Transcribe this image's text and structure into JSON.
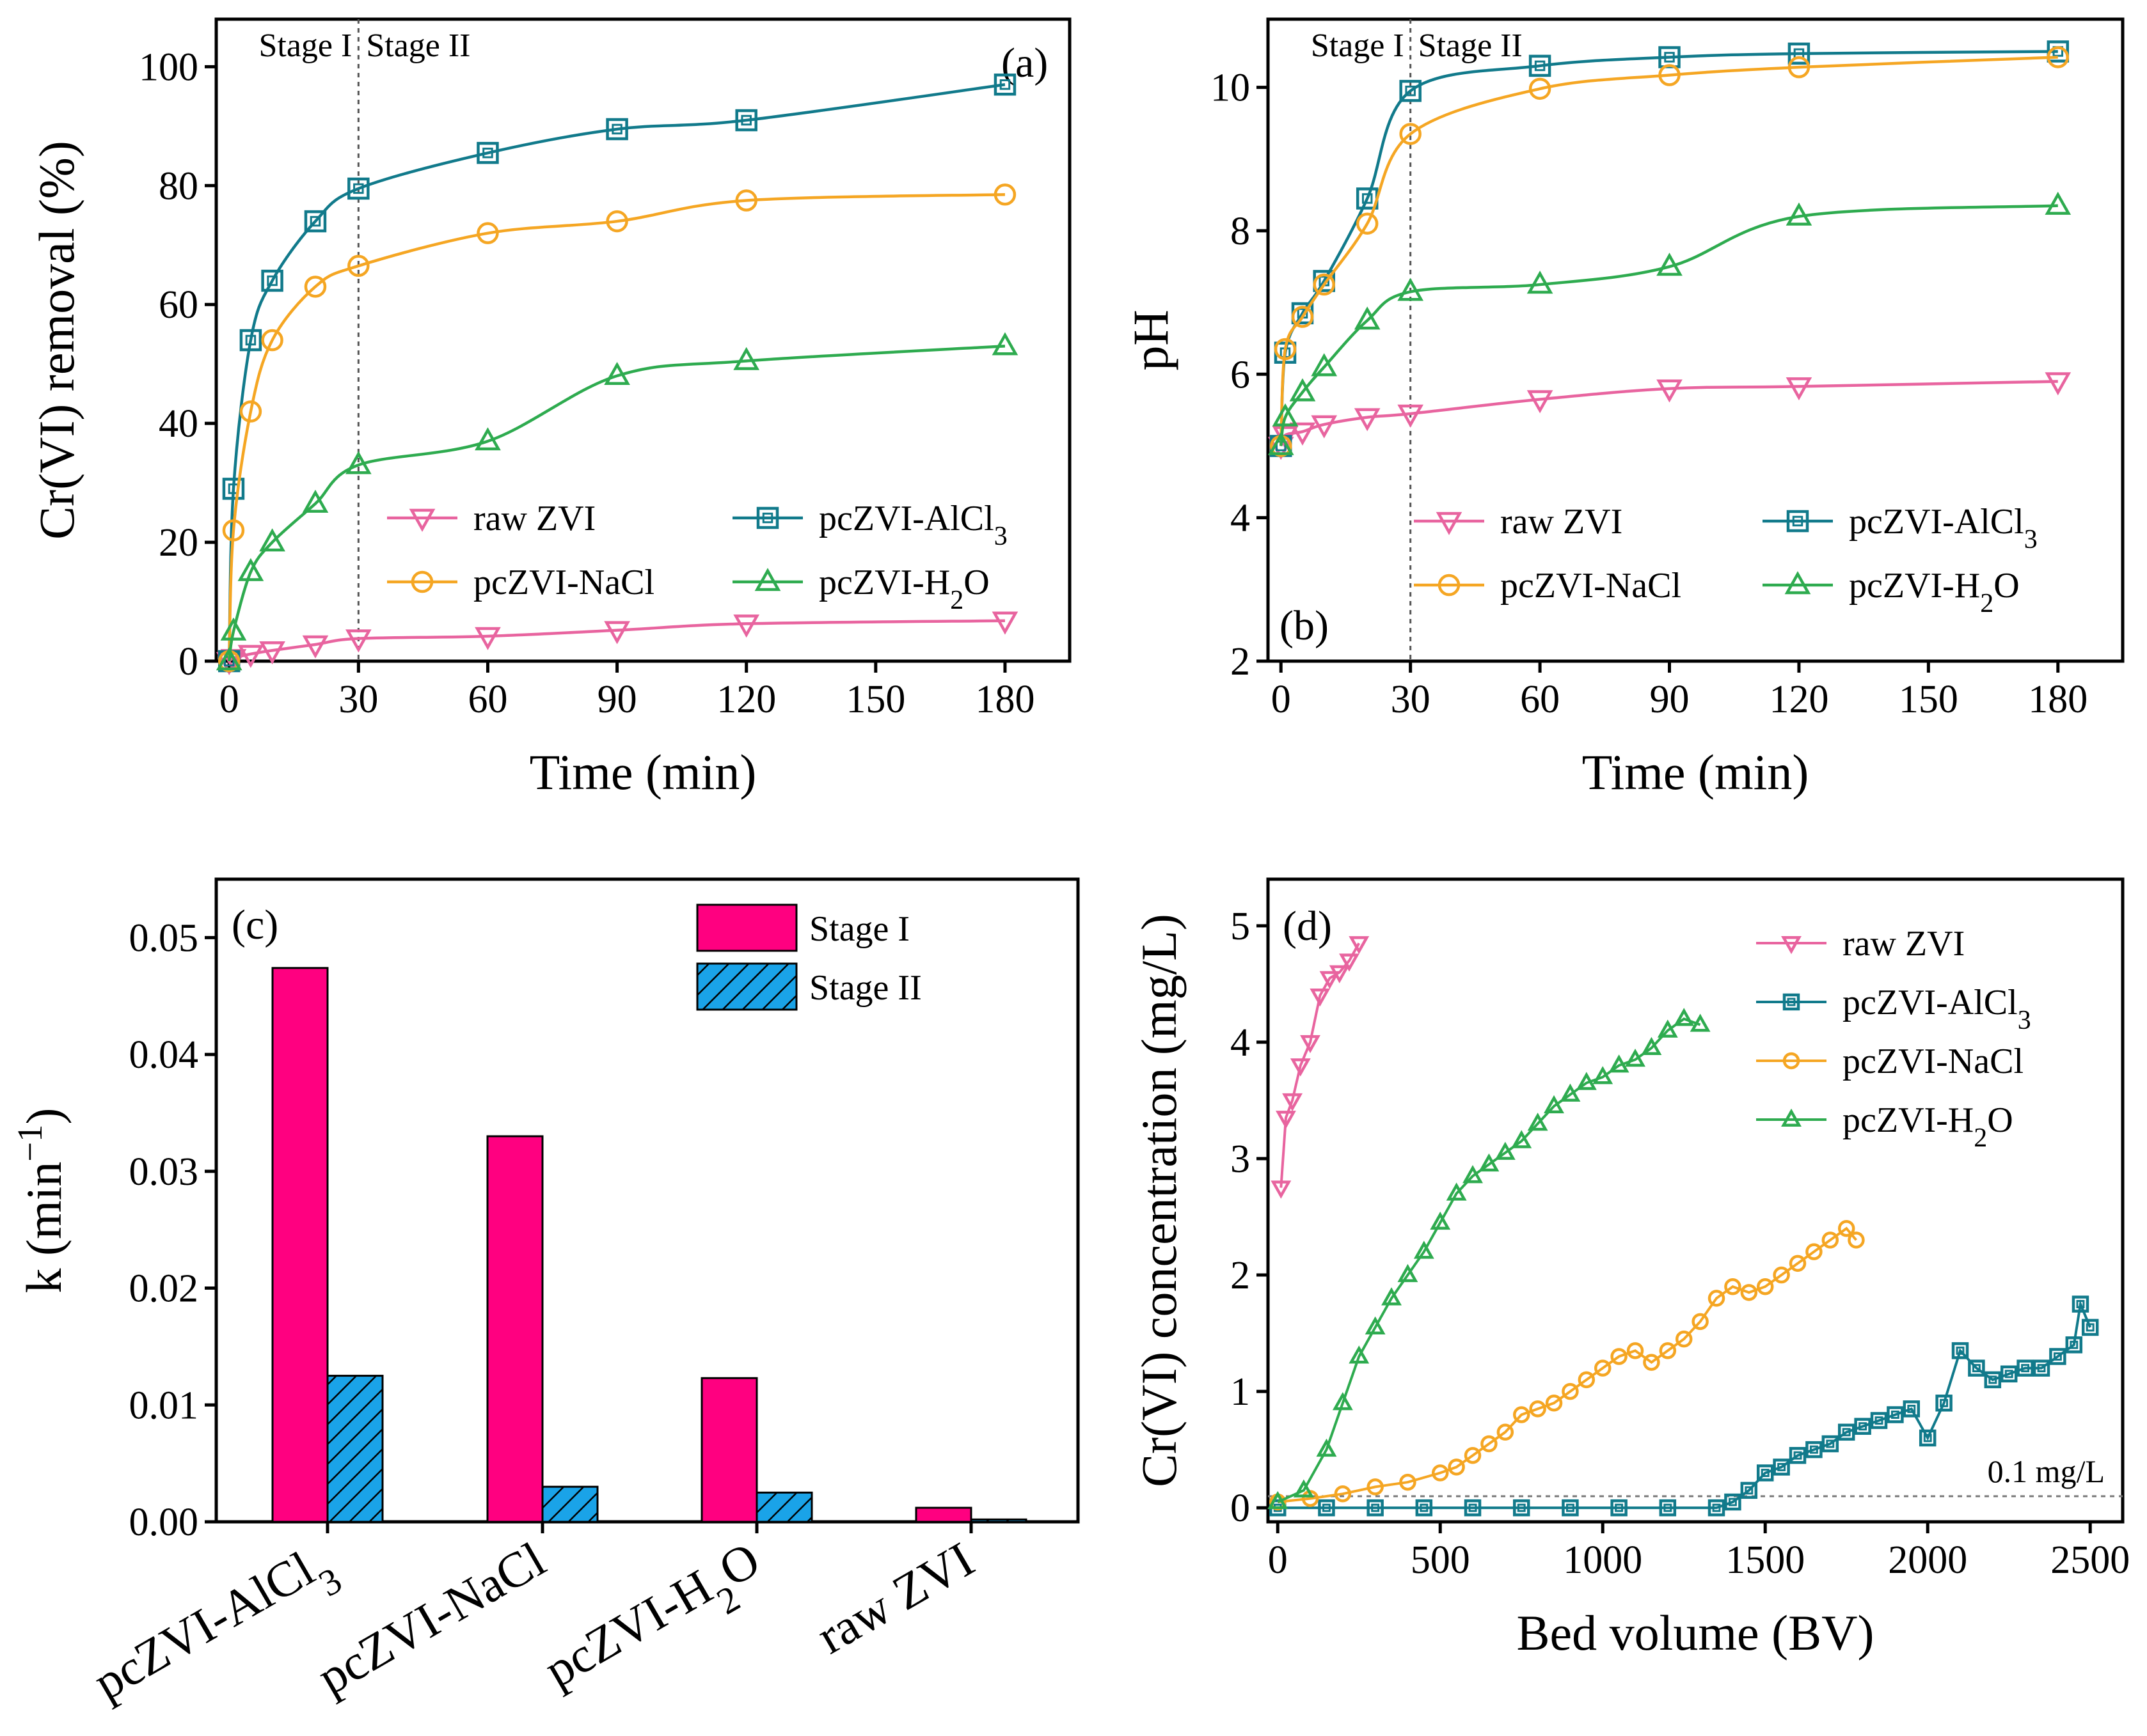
{
  "figure": {
    "colors": {
      "raw": "#e8649f",
      "alcl3": "#117a8b",
      "nacl": "#f5a623",
      "h2o": "#2eab4f",
      "stage1": "#ff0080",
      "stage2": "#1aa3e8"
    }
  },
  "chart_data": [
    {
      "id": "a",
      "type": "line",
      "panel_label": "(a)",
      "xlabel": "Time (min)",
      "ylabel": "Cr(VI) removal (%)",
      "xlim": [
        -3,
        195
      ],
      "ylim": [
        0,
        108
      ],
      "xticks": [
        0,
        30,
        60,
        90,
        120,
        150,
        180
      ],
      "yticks": [
        0,
        20,
        40,
        60,
        80,
        100
      ],
      "stage_divider": 30,
      "stage_labels": [
        "Stage I",
        "Stage II"
      ],
      "x": [
        0,
        1,
        5,
        10,
        20,
        30,
        60,
        90,
        120,
        180
      ],
      "series": [
        {
          "name": "raw ZVI",
          "label": "raw ZVI",
          "marker": "triangle-down",
          "color_key": "raw",
          "values": [
            0,
            0.5,
            1.2,
            1.8,
            2.8,
            3.8,
            4.2,
            5.2,
            6.3,
            6.8
          ]
        },
        {
          "name": "pcZVI-AlCl3",
          "label": "pcZVI-AlCl",
          "sub": "3",
          "marker": "square",
          "color_key": "alcl3",
          "values": [
            0,
            29,
            54,
            64,
            74,
            79.5,
            85.5,
            89.5,
            91,
            97
          ]
        },
        {
          "name": "pcZVI-NaCl",
          "label": "pcZVI-NaCl",
          "marker": "circle",
          "color_key": "nacl",
          "values": [
            0,
            22,
            42,
            54,
            63,
            66.5,
            72,
            74,
            77.5,
            78.5
          ]
        },
        {
          "name": "pcZVI-H2O",
          "label": "pcZVI-H",
          "sub": "2",
          "tail": "O",
          "marker": "triangle-up",
          "color_key": "h2o",
          "values": [
            0,
            5,
            15,
            20,
            26.5,
            33,
            37,
            48,
            50.5,
            53
          ]
        }
      ],
      "legend": "center-right, two columns"
    },
    {
      "id": "b",
      "type": "line",
      "panel_label": "(b)",
      "xlabel": "Time (min)",
      "ylabel": "pH",
      "xlim": [
        -3,
        195
      ],
      "ylim": [
        2,
        10.95
      ],
      "xticks": [
        0,
        30,
        60,
        90,
        120,
        150,
        180
      ],
      "yticks": [
        2,
        4,
        6,
        8,
        10
      ],
      "stage_divider": 30,
      "stage_labels": [
        "Stage I",
        "Stage II"
      ],
      "x": [
        0,
        1,
        5,
        10,
        20,
        30,
        60,
        90,
        120,
        180
      ],
      "series": [
        {
          "name": "raw ZVI",
          "label": "raw ZVI",
          "marker": "triangle-down",
          "color_key": "raw",
          "values": [
            5.0,
            5.15,
            5.2,
            5.3,
            5.4,
            5.45,
            5.65,
            5.8,
            5.83,
            5.9
          ]
        },
        {
          "name": "pcZVI-AlCl3",
          "label": "pcZVI-AlCl",
          "sub": "3",
          "marker": "square",
          "color_key": "alcl3",
          "values": [
            5.0,
            6.3,
            6.85,
            7.3,
            8.45,
            9.95,
            10.3,
            10.42,
            10.47,
            10.5
          ]
        },
        {
          "name": "pcZVI-NaCl",
          "label": "pcZVI-NaCl",
          "marker": "circle",
          "color_key": "nacl",
          "values": [
            5.0,
            6.35,
            6.8,
            7.25,
            8.1,
            9.35,
            9.98,
            10.17,
            10.28,
            10.42
          ]
        },
        {
          "name": "pcZVI-H2O",
          "label": "pcZVI-H",
          "sub": "2",
          "tail": "O",
          "marker": "triangle-up",
          "color_key": "h2o",
          "values": [
            5.0,
            5.4,
            5.75,
            6.1,
            6.75,
            7.15,
            7.25,
            7.5,
            8.2,
            8.35
          ]
        }
      ],
      "legend": "bottom-right, two columns"
    },
    {
      "id": "c",
      "type": "bar",
      "panel_label": "(c)",
      "xlabel": "",
      "ylabel": "k (min",
      "ylabel_sup": "−1",
      "ylabel_tail": ")",
      "ylim": [
        0,
        0.055
      ],
      "yticks": [
        "0.00",
        "0.01",
        "0.02",
        "0.03",
        "0.04",
        "0.05"
      ],
      "categories": [
        {
          "label": "pcZVI-AlCl",
          "sub": "3"
        },
        {
          "label": "pcZVI-NaCl"
        },
        {
          "label": "pcZVI-H",
          "sub": "2",
          "tail": "O"
        },
        {
          "label": "raw ZVI"
        }
      ],
      "series": [
        {
          "name": "Stage I",
          "label": "Stage I",
          "color_key": "stage1",
          "values": [
            0.0474,
            0.033,
            0.0123,
            0.0012
          ]
        },
        {
          "name": "Stage II",
          "label": "Stage II",
          "color_key": "stage2",
          "hatch": true,
          "values": [
            0.0125,
            0.003,
            0.0025,
            0.0002
          ]
        }
      ],
      "legend": "top-right"
    },
    {
      "id": "d",
      "type": "scatter",
      "panel_label": "(d)",
      "xlabel": "Bed volume (BV)",
      "ylabel": "Cr(VI) concentration (mg/L)",
      "xlim": [
        -30,
        2600
      ],
      "ylim": [
        -0.12,
        5.4
      ],
      "xticks": [
        0,
        500,
        1000,
        1500,
        2000,
        2500
      ],
      "yticks": [
        0,
        1,
        2,
        3,
        4,
        5
      ],
      "reference_line": {
        "y": 0.1,
        "label": "0.1 mg/L"
      },
      "series": [
        {
          "name": "raw ZVI",
          "label": "raw ZVI",
          "marker": "triangle-down",
          "color_key": "raw",
          "x": [
            10,
            25,
            45,
            70,
            100,
            130,
            160,
            190,
            220,
            250
          ],
          "y": [
            2.75,
            3.35,
            3.5,
            3.8,
            4.0,
            4.4,
            4.55,
            4.6,
            4.7,
            4.85
          ]
        },
        {
          "name": "pcZVI-AlCl3",
          "label": "pcZVI-AlCl",
          "sub": "3",
          "marker": "square",
          "color_key": "alcl3",
          "x": [
            0,
            150,
            300,
            450,
            600,
            750,
            900,
            1050,
            1200,
            1350,
            1400,
            1450,
            1500,
            1550,
            1600,
            1650,
            1700,
            1750,
            1800,
            1850,
            1900,
            1950,
            2000,
            2050,
            2100,
            2150,
            2200,
            2250,
            2300,
            2350,
            2400,
            2450,
            2470,
            2500
          ],
          "y": [
            0,
            0,
            0,
            0,
            0,
            0,
            0,
            0,
            0,
            0,
            0.05,
            0.15,
            0.3,
            0.35,
            0.45,
            0.5,
            0.55,
            0.65,
            0.7,
            0.75,
            0.8,
            0.85,
            0.6,
            0.9,
            1.35,
            1.2,
            1.1,
            1.15,
            1.2,
            1.2,
            1.3,
            1.4,
            1.75,
            1.55
          ]
        },
        {
          "name": "pcZVI-NaCl",
          "label": "pcZVI-NaCl",
          "marker": "circle",
          "color_key": "nacl",
          "x": [
            0,
            100,
            200,
            300,
            400,
            500,
            550,
            600,
            650,
            700,
            750,
            800,
            850,
            900,
            950,
            1000,
            1050,
            1100,
            1150,
            1200,
            1250,
            1300,
            1350,
            1400,
            1450,
            1500,
            1550,
            1600,
            1650,
            1700,
            1750,
            1780
          ],
          "y": [
            0.05,
            0.08,
            0.12,
            0.18,
            0.22,
            0.3,
            0.35,
            0.45,
            0.55,
            0.65,
            0.8,
            0.85,
            0.9,
            1.0,
            1.1,
            1.2,
            1.3,
            1.35,
            1.25,
            1.35,
            1.45,
            1.6,
            1.8,
            1.9,
            1.85,
            1.9,
            2.0,
            2.1,
            2.2,
            2.3,
            2.4,
            2.3
          ]
        },
        {
          "name": "pcZVI-H2O",
          "label": "pcZVI-H",
          "sub": "2",
          "tail": "O",
          "marker": "triangle-up",
          "color_key": "h2o",
          "x": [
            0,
            80,
            150,
            200,
            250,
            300,
            350,
            400,
            450,
            500,
            550,
            600,
            650,
            700,
            750,
            800,
            850,
            900,
            950,
            1000,
            1050,
            1100,
            1150,
            1200,
            1250,
            1300
          ],
          "y": [
            0.05,
            0.15,
            0.5,
            0.9,
            1.3,
            1.55,
            1.8,
            2.0,
            2.2,
            2.45,
            2.7,
            2.85,
            2.95,
            3.05,
            3.15,
            3.3,
            3.45,
            3.55,
            3.65,
            3.7,
            3.8,
            3.85,
            3.95,
            4.1,
            4.2,
            4.15
          ]
        }
      ],
      "legend": "top-right"
    }
  ]
}
